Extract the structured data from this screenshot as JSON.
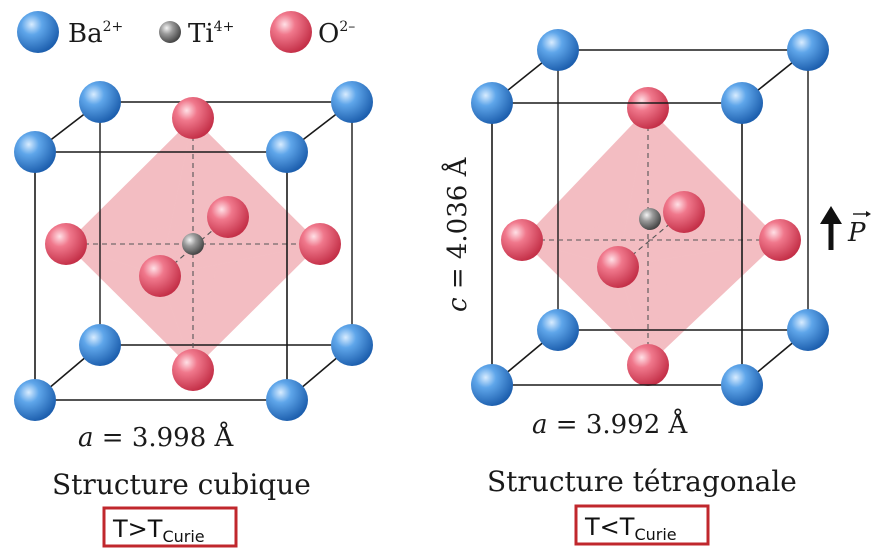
{
  "legend": {
    "ba": {
      "base": "Ba",
      "charge": "2+"
    },
    "ti": {
      "base": "Ti",
      "charge": "4+"
    },
    "o": {
      "base": "O",
      "charge": "2–"
    }
  },
  "cubic": {
    "lattice_a": {
      "symbol": "a",
      "equals": " = 3.998 Å"
    },
    "title": "Structure cubique",
    "condition": {
      "base": "T>T",
      "sub": "Curie"
    }
  },
  "tetragonal": {
    "lattice_a": {
      "symbol": "a",
      "equals": " = 3.992 Å"
    },
    "lattice_c": {
      "symbol": "c",
      "equals": " = 4.036 Å"
    },
    "title": "Structure tétragonale",
    "condition": {
      "base": "T<T",
      "sub": "Curie"
    },
    "polarization": {
      "symbol": "P"
    }
  },
  "colors": {
    "ba": "#2f7fd0",
    "ti": "#7a7a7a",
    "o": "#e0485e",
    "condition_border": "#c0272d"
  }
}
